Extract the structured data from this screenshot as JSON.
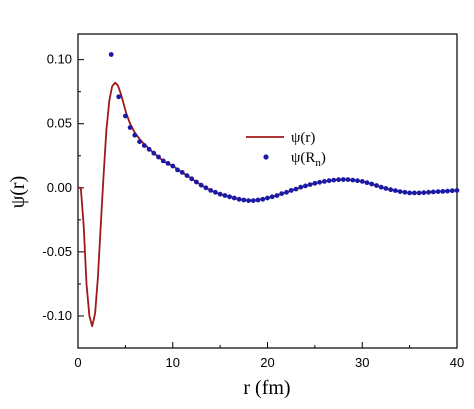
{
  "chart_data": {
    "type": "line",
    "xlabel": "r (fm)",
    "ylabel": "ψ(r)",
    "xlim": [
      0,
      40
    ],
    "ylim": [
      -0.125,
      0.12
    ],
    "xticks": [
      0,
      10,
      20,
      30,
      40
    ],
    "xtick_labels": [
      "0",
      "10",
      "20",
      "30",
      "40"
    ],
    "yticks": [
      0.1,
      0.05,
      0.0,
      -0.05,
      -0.1
    ],
    "ytick_labels": [
      "0.10",
      "0.05",
      "0.00",
      "-0.05",
      "-0.10"
    ],
    "legend_position": "right",
    "grid": false,
    "series": [
      {
        "name": "ψ(r)",
        "style": "line",
        "color": "#a01818",
        "x": [
          0,
          0.3,
          0.6,
          0.9,
          1.2,
          1.5,
          1.8,
          2.1,
          2.4,
          2.7,
          3.0,
          3.3,
          3.6,
          3.9,
          4.2,
          4.5,
          4.8,
          5.1,
          5.5,
          6,
          6.5,
          7,
          8,
          9,
          10,
          11,
          12,
          13,
          14,
          15,
          16,
          17,
          18,
          19,
          20,
          21,
          22,
          23,
          24,
          25,
          26,
          27,
          28,
          29,
          30,
          31,
          32,
          33,
          34,
          35,
          36,
          37,
          38,
          39,
          40
        ],
        "y": [
          0.0,
          0.0,
          -0.03,
          -0.075,
          -0.1,
          -0.108,
          -0.098,
          -0.07,
          -0.03,
          0.01,
          0.045,
          0.068,
          0.079,
          0.082,
          0.08,
          0.074,
          0.066,
          0.058,
          0.05,
          0.043,
          0.038,
          0.034,
          0.027,
          0.021,
          0.017,
          0.012,
          0.007,
          0.002,
          -0.002,
          -0.005,
          -0.007,
          -0.009,
          -0.01,
          -0.0095,
          -0.008,
          -0.006,
          -0.0035,
          -0.001,
          0.0015,
          0.0035,
          0.005,
          0.006,
          0.0065,
          0.006,
          0.005,
          0.003,
          0.0005,
          -0.0015,
          -0.003,
          -0.004,
          -0.004,
          -0.0035,
          -0.003,
          -0.0025,
          -0.002
        ]
      },
      {
        "name": "ψ(R",
        "name_subscript": "n",
        "name_suffix": ")",
        "style": "scatter",
        "color": "#1a1aa8",
        "x": [
          3.5,
          4.3,
          5.0,
          5.5,
          6.0,
          6.5,
          7.0,
          7.5,
          8.0,
          8.5,
          9.0,
          9.5,
          10.0,
          10.5,
          11.0,
          11.5,
          12.0,
          12.5,
          13.0,
          13.5,
          14.0,
          14.5,
          15.0,
          15.5,
          16.0,
          16.5,
          17.0,
          17.5,
          18.0,
          18.5,
          19.0,
          19.5,
          20.0,
          20.5,
          21.0,
          21.5,
          22.0,
          22.5,
          23.0,
          23.5,
          24.0,
          24.5,
          25.0,
          25.5,
          26.0,
          26.5,
          27.0,
          27.5,
          28.0,
          28.5,
          29.0,
          29.5,
          30.0,
          30.5,
          31.0,
          31.5,
          32.0,
          32.5,
          33.0,
          33.5,
          34.0,
          34.5,
          35.0,
          35.5,
          36.0,
          36.5,
          37.0,
          37.5,
          38.0,
          38.5,
          39.0,
          39.5,
          40.0
        ],
        "y": [
          0.104,
          0.071,
          0.056,
          0.047,
          0.041,
          0.036,
          0.033,
          0.03,
          0.027,
          0.024,
          0.021,
          0.019,
          0.017,
          0.014,
          0.012,
          0.0095,
          0.007,
          0.0045,
          0.002,
          0.0,
          -0.002,
          -0.0035,
          -0.005,
          -0.006,
          -0.007,
          -0.008,
          -0.009,
          -0.0095,
          -0.01,
          -0.01,
          -0.0095,
          -0.009,
          -0.008,
          -0.007,
          -0.006,
          -0.0045,
          -0.0035,
          -0.002,
          -0.001,
          0.0005,
          0.0015,
          0.0025,
          0.0035,
          0.0043,
          0.005,
          0.0055,
          0.006,
          0.0063,
          0.0065,
          0.0064,
          0.006,
          0.0055,
          0.005,
          0.004,
          0.003,
          0.0018,
          0.0005,
          -0.0005,
          -0.0015,
          -0.0022,
          -0.003,
          -0.0035,
          -0.004,
          -0.004,
          -0.004,
          -0.0038,
          -0.0035,
          -0.0032,
          -0.003,
          -0.0028,
          -0.0026,
          -0.0023,
          -0.002
        ]
      }
    ]
  }
}
